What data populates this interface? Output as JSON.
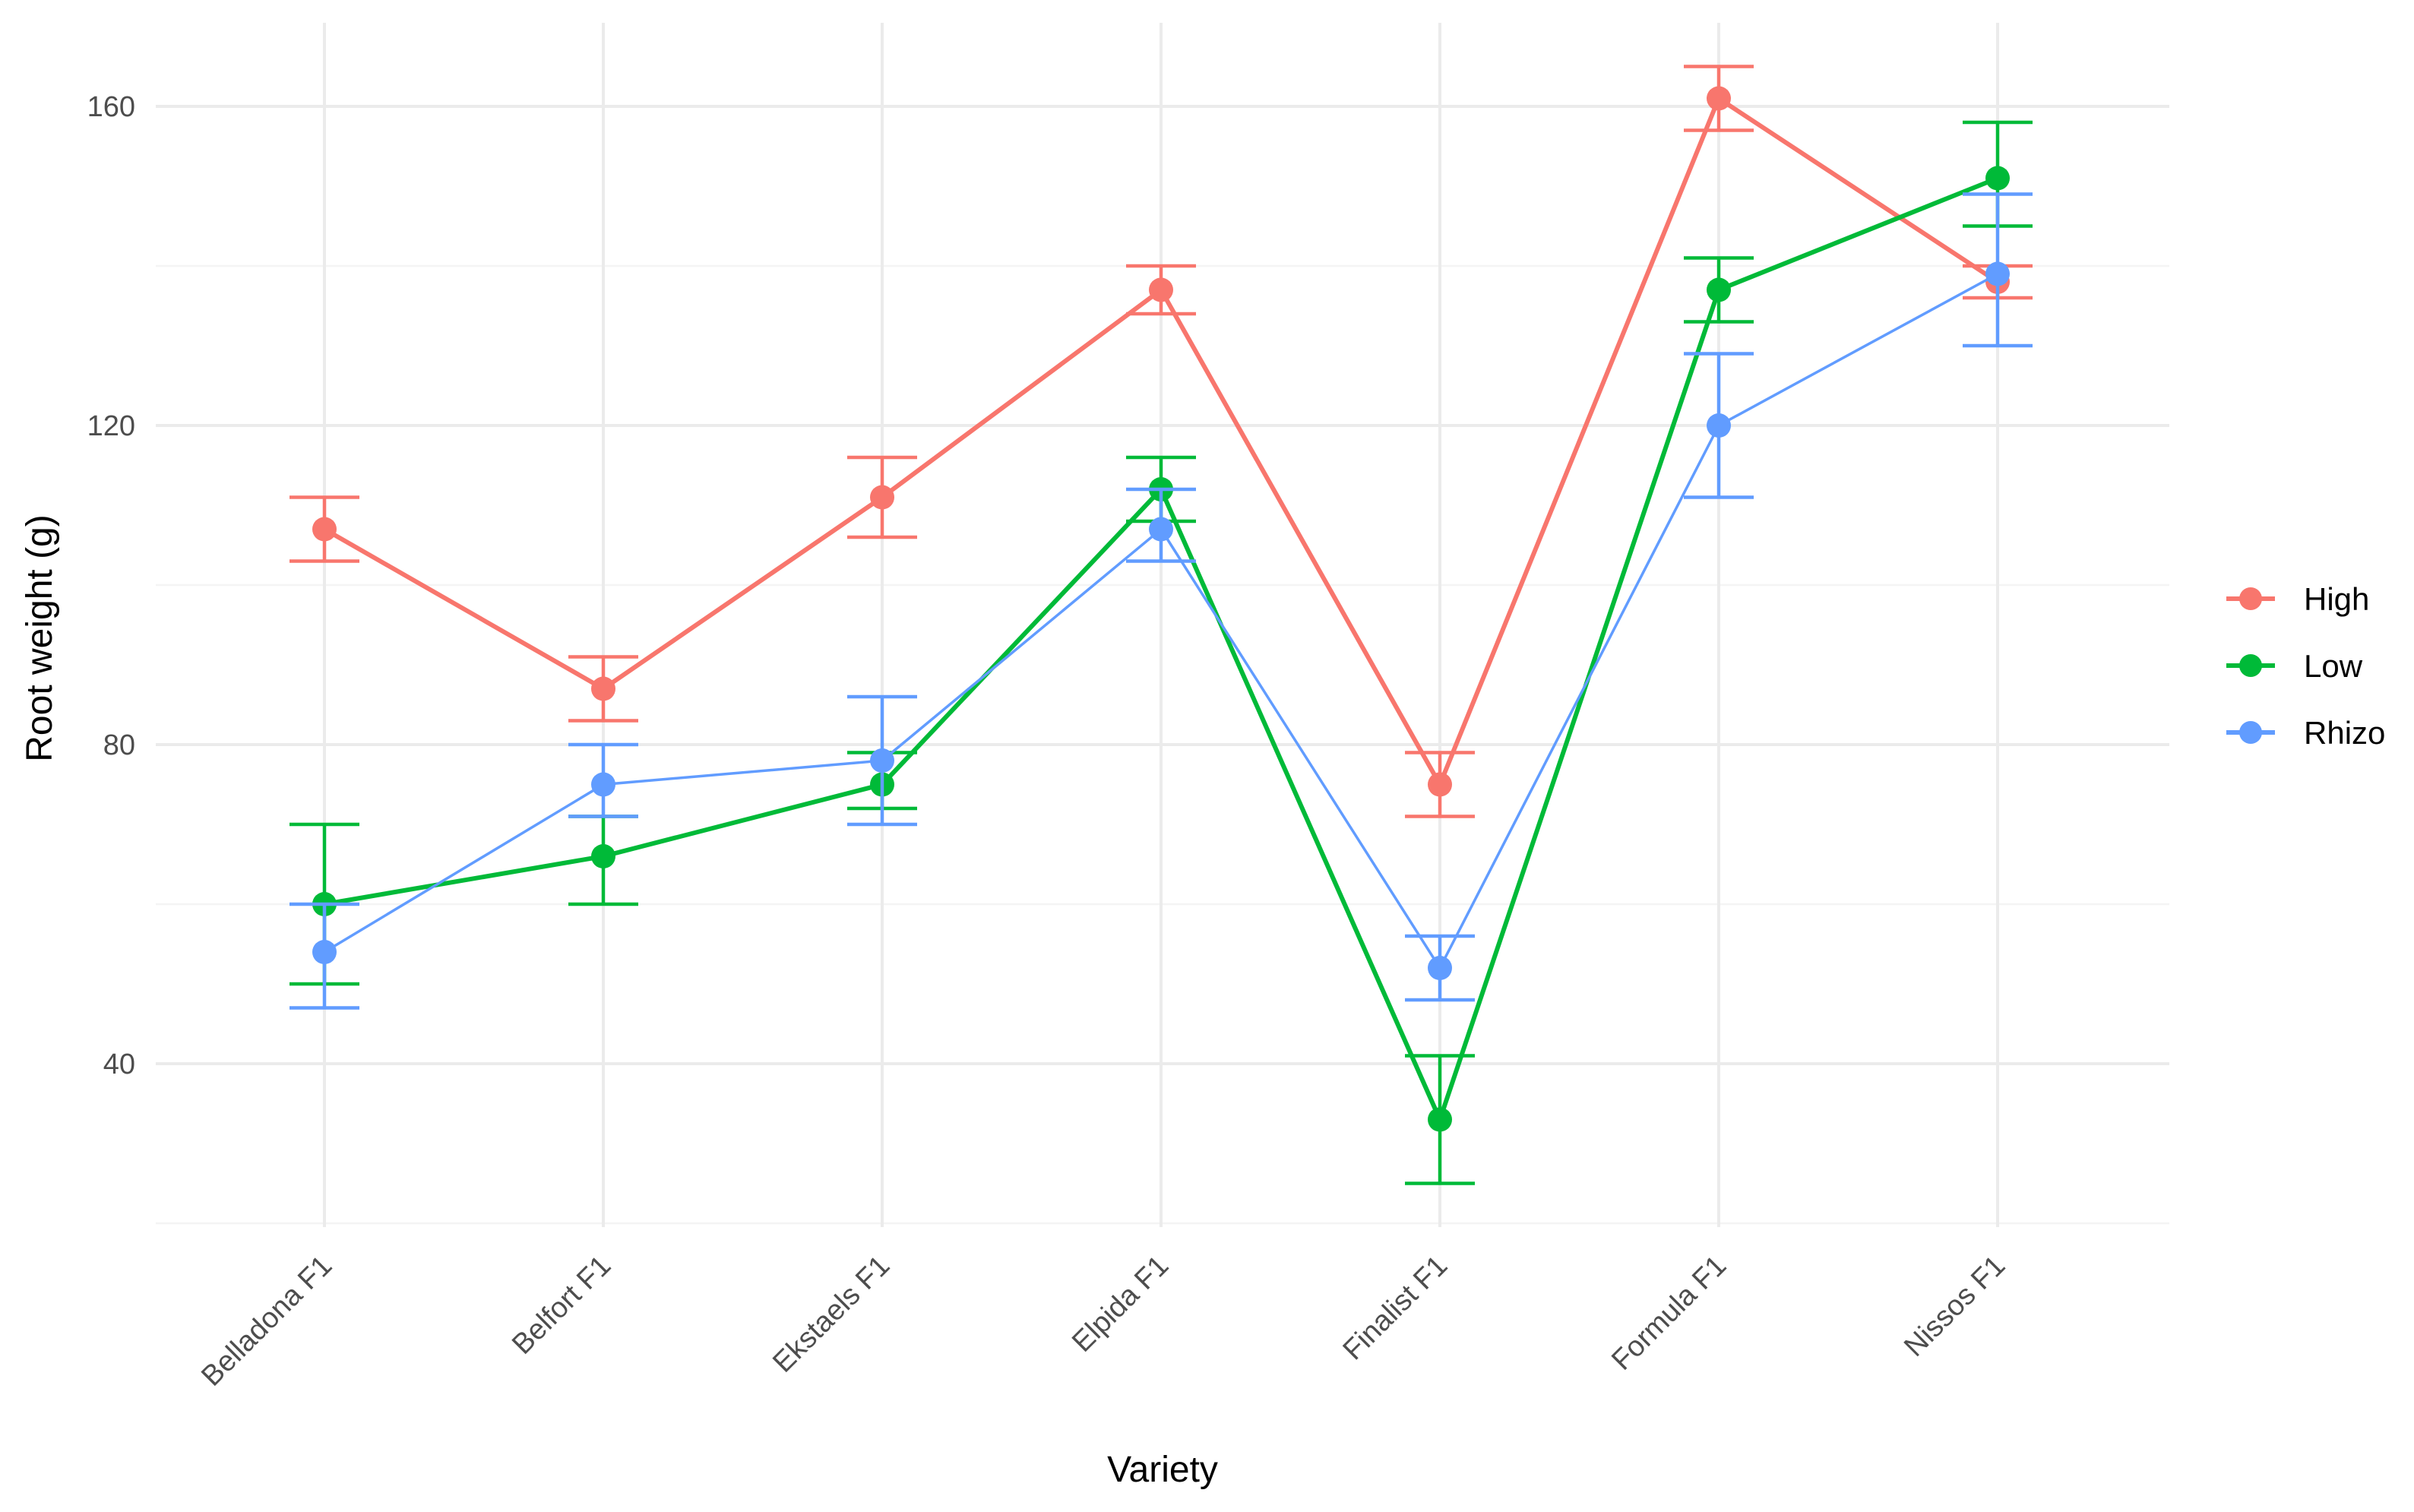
{
  "chart_data": {
    "type": "line",
    "xlabel": "Variety",
    "ylabel": "Root weight (g)",
    "categories": [
      "Belladona F1",
      "Belfort F1",
      "Ekstaels F1",
      "Elpida F1",
      "Finalist F1",
      "Formula F1",
      "Nissos F1"
    ],
    "yticks": [
      40,
      80,
      120,
      160
    ],
    "ylim": [
      20,
      170
    ],
    "grid": true,
    "legend_position": "right",
    "series": [
      {
        "name": "High",
        "color": "#F8766D",
        "values": [
          107,
          87,
          111,
          137,
          75,
          161,
          138
        ],
        "error_low": [
          103,
          83,
          106,
          134,
          71,
          157,
          136
        ],
        "error_high": [
          111,
          91,
          116,
          140,
          79,
          165,
          140
        ]
      },
      {
        "name": "Low",
        "color": "#00BA38",
        "values": [
          60,
          66,
          75,
          112,
          33,
          137,
          151
        ],
        "error_low": [
          50,
          60,
          72,
          108,
          25,
          133,
          145
        ],
        "error_high": [
          70,
          71,
          79,
          116,
          41,
          141,
          158
        ]
      },
      {
        "name": "Rhizo",
        "color": "#619CFF",
        "values": [
          54,
          75,
          78,
          107,
          52,
          120,
          139
        ],
        "error_low": [
          47,
          71,
          70,
          103,
          48,
          111,
          130
        ],
        "error_high": [
          60,
          80,
          86,
          112,
          56,
          129,
          149
        ]
      }
    ]
  }
}
